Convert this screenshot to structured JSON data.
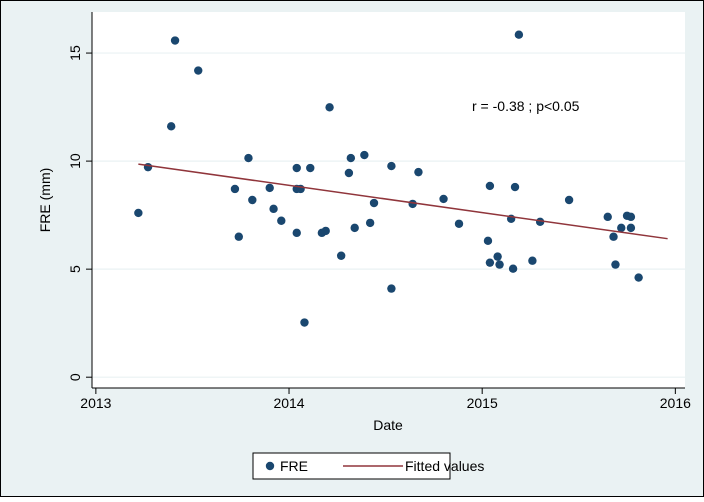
{
  "chart_data": {
    "type": "scatter",
    "x_label": "Date",
    "y_label": "FRE (mm)",
    "annotation": "r = -0.38 ; p<0.05",
    "xlim": [
      2012.98,
      2016.05
    ],
    "ylim": [
      -0.5,
      16.9
    ],
    "xticks": [
      2013,
      2014,
      2015,
      2016
    ],
    "yticks": [
      0,
      5,
      10,
      15
    ],
    "grid": true,
    "series": [
      {
        "name": "FRE",
        "color": "#1a476f",
        "kind": "points",
        "x": [
          2013.22,
          2013.27,
          2013.41,
          2013.39,
          2013.53,
          2013.72,
          2013.74,
          2013.79,
          2013.81,
          2013.9,
          2013.92,
          2013.96,
          2014.04,
          2014.04,
          2014.06,
          2014.04,
          2014.08,
          2014.11,
          2014.17,
          2014.19,
          2014.21,
          2014.27,
          2014.31,
          2014.32,
          2014.34,
          2014.39,
          2014.42,
          2014.44,
          2014.53,
          2014.53,
          2014.64,
          2014.67,
          2014.8,
          2014.88,
          2015.03,
          2015.04,
          2015.04,
          2015.08,
          2015.09,
          2015.15,
          2015.16,
          2015.17,
          2015.19,
          2015.26,
          2015.3,
          2015.45,
          2015.65,
          2015.68,
          2015.69,
          2015.72,
          2015.75,
          2015.77,
          2015.77,
          2015.81
        ],
        "values": [
          7.6,
          9.72,
          15.58,
          11.61,
          14.19,
          8.71,
          6.5,
          10.14,
          8.2,
          8.76,
          7.79,
          7.24,
          9.68,
          8.71,
          8.71,
          6.68,
          2.53,
          9.68,
          6.68,
          6.77,
          12.49,
          5.62,
          9.45,
          10.14,
          6.91,
          10.28,
          7.14,
          8.06,
          9.77,
          4.1,
          8.02,
          9.49,
          8.25,
          7.1,
          6.31,
          8.85,
          5.3,
          5.58,
          5.21,
          7.33,
          5.02,
          8.8,
          15.85,
          5.39,
          7.19,
          8.2,
          7.42,
          6.5,
          5.21,
          6.91,
          7.47,
          7.42,
          6.91,
          4.61
        ]
      },
      {
        "name": "Fitted values",
        "color": "#90353b",
        "kind": "line",
        "x": [
          2013.22,
          2015.96
        ],
        "values": [
          9.86,
          6.41
        ]
      }
    ]
  }
}
